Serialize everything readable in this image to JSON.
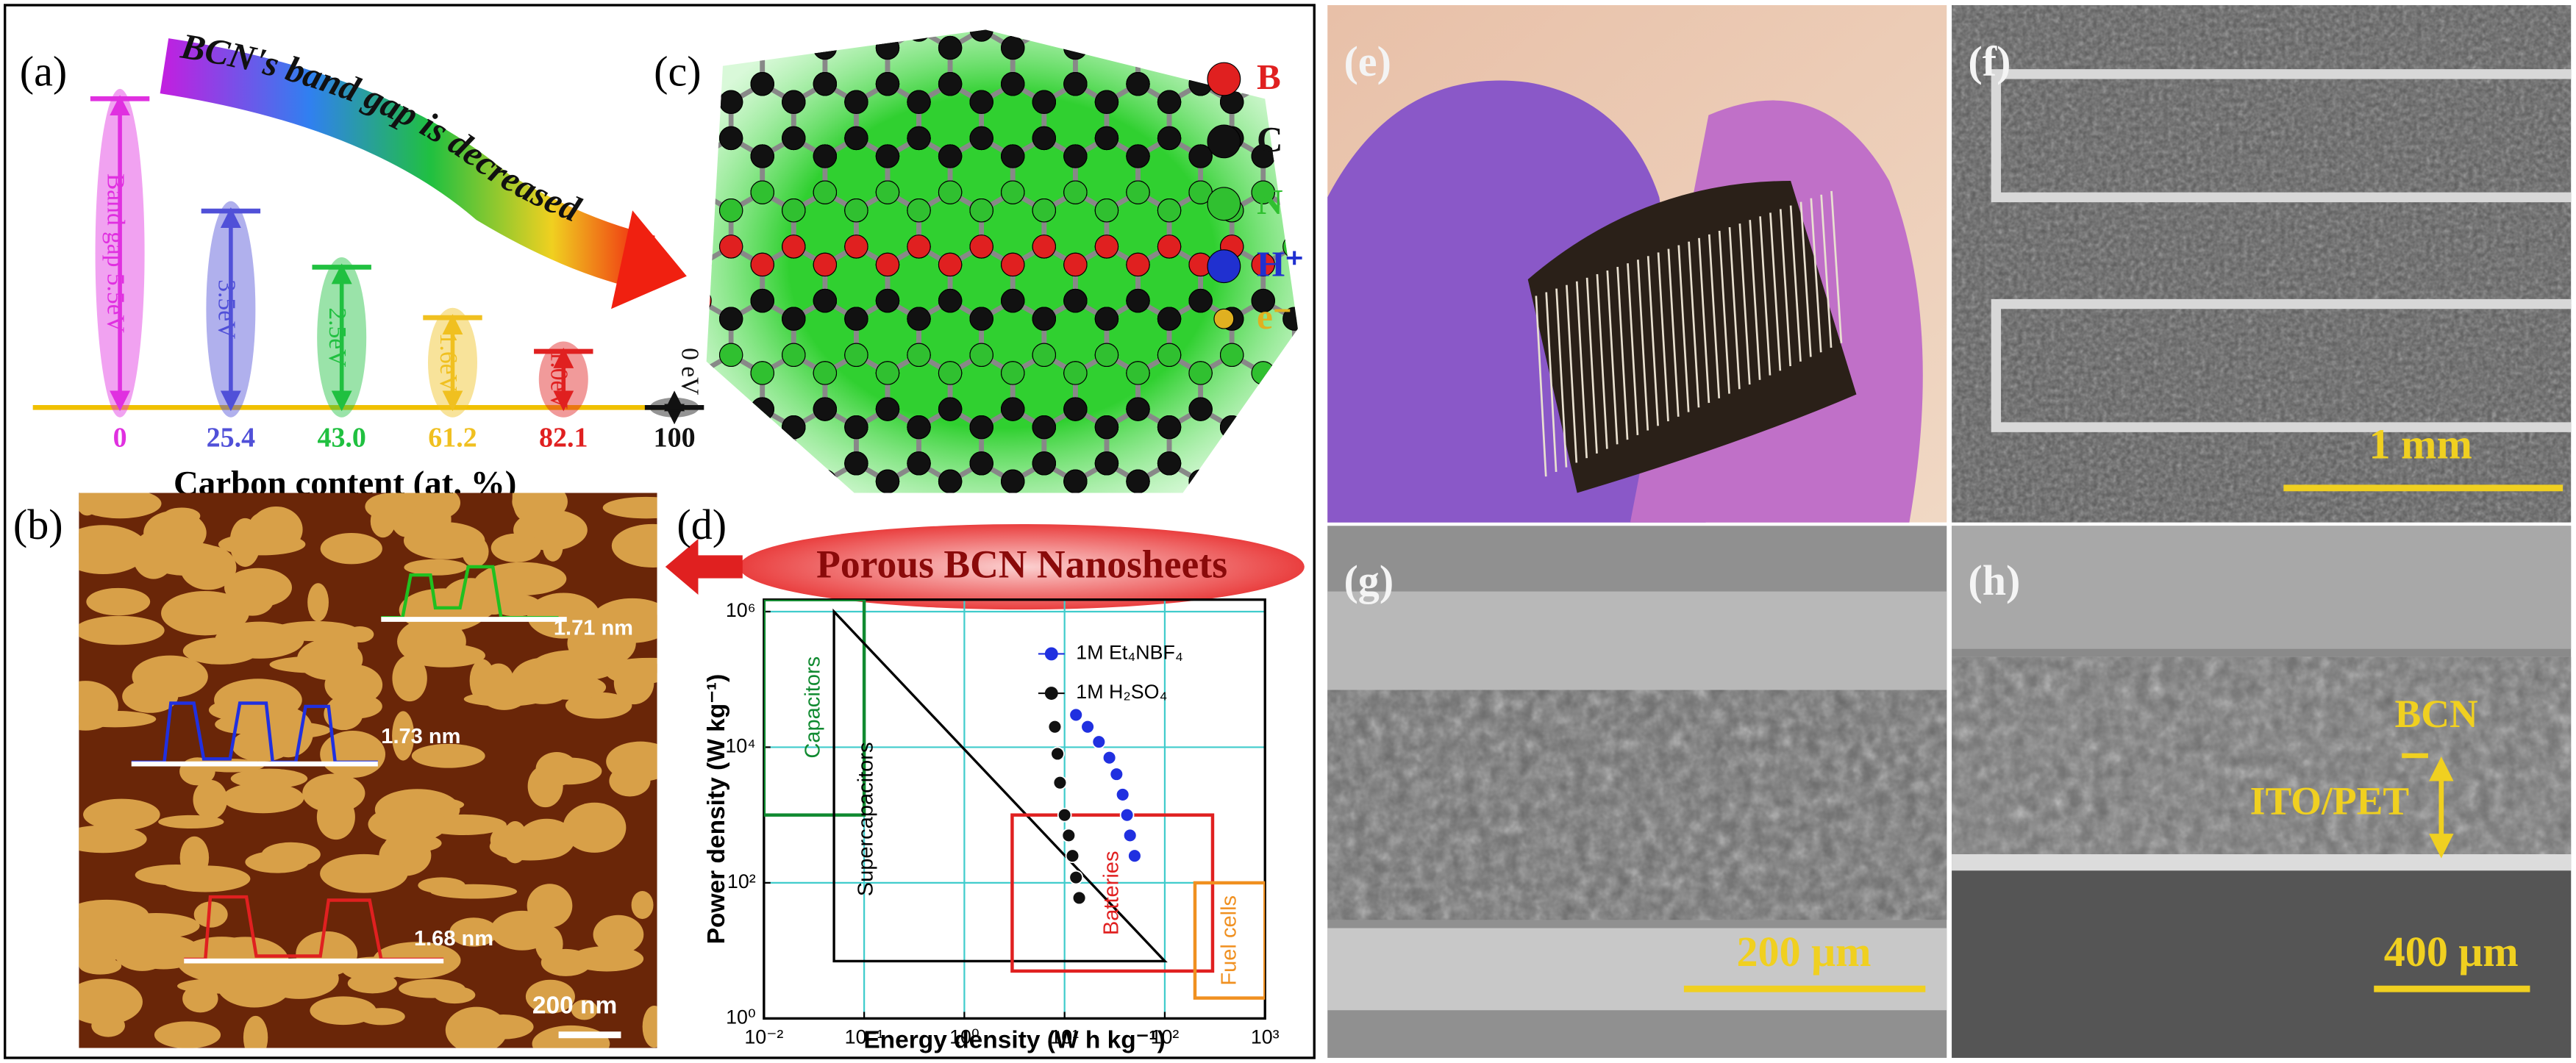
{
  "panel_labels": [
    "(a)",
    "(b)",
    "(c)",
    "(d)",
    "(e)",
    "(f)",
    "(g)",
    "(h)"
  ],
  "chart_data": [
    {
      "type": "bar",
      "annotation": "BCN's band gap is decreased",
      "x_label": "Carbon content (at. %)",
      "categories": [
        "0",
        "25.4",
        "43.0",
        "61.2",
        "82.1",
        "100"
      ],
      "values": [
        5.5,
        3.5,
        2.5,
        1.6,
        1.0,
        0
      ],
      "value_labels": [
        "Band gap 5.5eV",
        "3.5eV",
        "2.5eV",
        "1.6eV",
        "1.0eV",
        "0 eV"
      ],
      "colors": [
        "#e030e0",
        "#5050d8",
        "#20c040",
        "#f0c020",
        "#e02020",
        "#111111"
      ]
    },
    {
      "type": "scatter",
      "x_label": "Energy density (W h kg⁻¹)",
      "y_label": "Power density (W kg⁻¹)",
      "xscale": "log",
      "yscale": "log",
      "grid": true,
      "xlim": [
        0.01,
        1000
      ],
      "ylim": [
        1,
        1500000
      ],
      "xticks": [
        {
          "value": 0.01,
          "label": "10⁻²"
        },
        {
          "value": 0.1,
          "label": "10⁻¹"
        },
        {
          "value": 1,
          "label": "10⁰"
        },
        {
          "value": 10,
          "label": "10¹"
        },
        {
          "value": 100,
          "label": "10²"
        },
        {
          "value": 1000,
          "label": "10³"
        }
      ],
      "yticks": [
        {
          "value": 1,
          "label": "10⁰"
        },
        {
          "value": 100,
          "label": "10²"
        },
        {
          "value": 10000,
          "label": "10⁴"
        },
        {
          "value": 1000000,
          "label": "10⁶"
        }
      ],
      "regions": [
        {
          "name": "Capacitors",
          "color": "#108a30",
          "x": [
            0.01,
            0.1
          ],
          "y": [
            1000,
            1500000
          ]
        },
        {
          "name": "Supercapacitors",
          "color": "#000000",
          "x": [
            0.05,
            0.05,
            100
          ],
          "y": [
            1000000,
            7,
            7
          ]
        },
        {
          "name": "Batteries",
          "color": "#e02020",
          "x": [
            3,
            300
          ],
          "y": [
            5,
            1000
          ]
        },
        {
          "name": "Fuel cells",
          "color": "#f09020",
          "x": [
            200,
            1000
          ],
          "y": [
            2,
            100
          ]
        }
      ],
      "series": [
        {
          "name": "1M Et₄NBF₄",
          "color": "#2030e0",
          "x": [
            13,
            17,
            22,
            28,
            33,
            38,
            42,
            45,
            50
          ],
          "values": [
            30000,
            20000,
            12000,
            7000,
            4000,
            2000,
            1000,
            500,
            250
          ]
        },
        {
          "name": "1M H₂SO₄",
          "color": "#111111",
          "x": [
            8,
            8.5,
            9,
            10,
            11,
            12,
            13,
            14
          ],
          "values": [
            20000,
            8000,
            3000,
            1000,
            500,
            250,
            120,
            60
          ]
        }
      ]
    }
  ],
  "panel_c": {
    "legend": [
      "B",
      "C",
      "N",
      "H⁺",
      "e⁻"
    ]
  },
  "banner": "Porous BCN Nanosheets",
  "panel_b": {
    "profiles": [
      "1.71 nm",
      "1.73 nm",
      "1.68 nm"
    ],
    "scale_bar": "200 nm"
  },
  "panel_f": {
    "scale_bar": "1 mm"
  },
  "panel_g": {
    "scale_bar": "200 μm"
  },
  "panel_h": {
    "scale_bar": "400 μm",
    "layers": [
      "BCN",
      "ITO/PET"
    ]
  }
}
